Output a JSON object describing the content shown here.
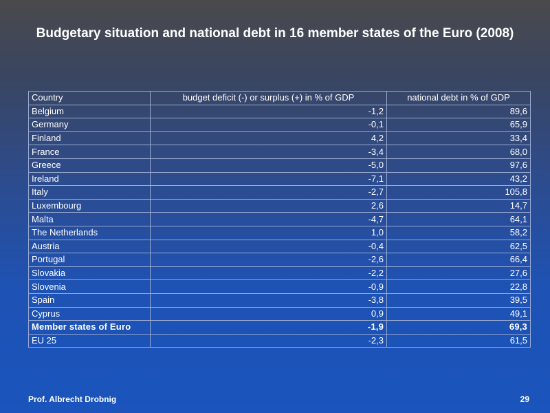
{
  "title": "Budgetary situation and national debt in 16 member states of the Euro (2008)",
  "chart_data": {
    "type": "table",
    "columns": [
      "Country",
      "budget deficit (-) or surplus (+) in % of GDP",
      "national debt in % of GDP"
    ],
    "rows": [
      {
        "country": "Belgium",
        "budget": "-1,2",
        "debt": "89,6"
      },
      {
        "country": "Germany",
        "budget": "-0,1",
        "debt": "65,9"
      },
      {
        "country": "Finland",
        "budget": "4,2",
        "debt": "33,4"
      },
      {
        "country": "France",
        "budget": "-3,4",
        "debt": "68,0"
      },
      {
        "country": "Greece",
        "budget": "-5,0",
        "debt": "97,6"
      },
      {
        "country": "Ireland",
        "budget": "-7,1",
        "debt": "43,2"
      },
      {
        "country": "Italy",
        "budget": "-2,7",
        "debt": "105,8"
      },
      {
        "country": "Luxembourg",
        "budget": "2,6",
        "debt": "14,7"
      },
      {
        "country": "Malta",
        "budget": "-4,7",
        "debt": "64,1"
      },
      {
        "country": "The Netherlands",
        "budget": "1,0",
        "debt": "58,2"
      },
      {
        "country": "Austria",
        "budget": "-0,4",
        "debt": "62,5"
      },
      {
        "country": "Portugal",
        "budget": "-2,6",
        "debt": "66,4"
      },
      {
        "country": "Slovakia",
        "budget": "-2,2",
        "debt": "27,6"
      },
      {
        "country": "Slovenia",
        "budget": "-0,9",
        "debt": "22,8"
      },
      {
        "country": "Spain",
        "budget": "-3,8",
        "debt": "39,5"
      },
      {
        "country": "Cyprus",
        "budget": "0,9",
        "debt": "49,1"
      },
      {
        "country": "Member states of Euro",
        "budget": "-1,9",
        "debt": "69,3",
        "bold": true
      },
      {
        "country": "EU 25",
        "budget": "-2,3",
        "debt": "61,5"
      }
    ]
  },
  "footer": {
    "author": "Prof. Albrecht Drobnig",
    "page_number": "29"
  }
}
